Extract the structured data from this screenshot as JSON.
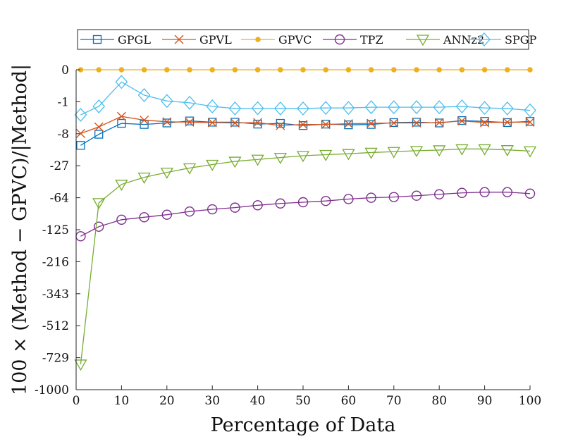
{
  "chart_data": {
    "type": "line",
    "title": "",
    "xlabel": "Percentage of Data",
    "ylabel": "100 × (Method − GPVC)/|Method|",
    "xlim": [
      0,
      100
    ],
    "ylim": [
      -1000,
      0
    ],
    "y_scale": "cube-root (signed)",
    "xticks": [
      0,
      10,
      20,
      30,
      40,
      50,
      60,
      70,
      80,
      90,
      100
    ],
    "yticks": [
      0,
      -1,
      -8,
      -27,
      -64,
      -125,
      -216,
      -343,
      -512,
      -729,
      -1000
    ],
    "ytick_labels": [
      "0",
      "-1",
      "-8",
      "-27",
      "-64",
      "-125",
      "-216",
      "-343",
      "-512",
      "-729",
      "-1000"
    ],
    "legend_position": "top",
    "x": [
      1,
      5,
      10,
      15,
      20,
      25,
      30,
      35,
      40,
      45,
      50,
      55,
      60,
      65,
      70,
      75,
      80,
      85,
      90,
      95,
      100
    ],
    "series": [
      {
        "name": "GPGL",
        "color": "#0072BD",
        "marker": "square",
        "values": [
          -13.2,
          -8.2,
          -4.7,
          -5.0,
          -4.6,
          -4.1,
          -4.4,
          -4.4,
          -4.9,
          -4.7,
          -5.3,
          -4.9,
          -5.1,
          -5.0,
          -4.5,
          -4.4,
          -4.6,
          -4.0,
          -4.2,
          -4.5,
          -4.2
        ]
      },
      {
        "name": "GPVL",
        "color": "#D95319",
        "marker": "x",
        "values": [
          -7.9,
          -5.7,
          -3.1,
          -3.9,
          -4.3,
          -4.4,
          -4.5,
          -4.6,
          -4.5,
          -5.3,
          -5.0,
          -5.0,
          -4.8,
          -4.7,
          -4.6,
          -4.6,
          -4.5,
          -4.1,
          -4.5,
          -4.4,
          -4.4
        ]
      },
      {
        "name": "GPVC",
        "color": "#EDB120",
        "marker": "dot",
        "values": [
          0,
          0,
          0,
          0,
          0,
          0,
          0,
          0,
          0,
          0,
          0,
          0,
          0,
          0,
          0,
          0,
          0,
          0,
          0,
          0,
          0
        ]
      },
      {
        "name": "TPZ",
        "color": "#7E2F8E",
        "marker": "circle",
        "values": [
          -141,
          -118,
          -103,
          -98,
          -93,
          -87,
          -83,
          -80,
          -76,
          -73,
          -71,
          -69,
          -66,
          -64,
          -63,
          -61,
          -59,
          -57,
          -56,
          -56,
          -58
        ]
      },
      {
        "name": "ANNz2",
        "color": "#77AC30",
        "marker": "triangle-down",
        "values": [
          -780,
          -72,
          -46,
          -38,
          -33,
          -29,
          -26,
          -23.5,
          -22,
          -20.7,
          -19.4,
          -18.7,
          -18.1,
          -17.3,
          -16.8,
          -16.2,
          -15.8,
          -15.2,
          -15.2,
          -15.7,
          -16.4
        ]
      },
      {
        "name": "SPGP",
        "color": "#4DBEEE",
        "marker": "diamond",
        "values": [
          -2.8,
          -1.5,
          -0.055,
          -0.5,
          -0.93,
          -1.1,
          -1.5,
          -1.77,
          -1.74,
          -1.77,
          -1.77,
          -1.7,
          -1.7,
          -1.6,
          -1.6,
          -1.6,
          -1.6,
          -1.5,
          -1.7,
          -1.77,
          -2.05
        ]
      }
    ]
  }
}
